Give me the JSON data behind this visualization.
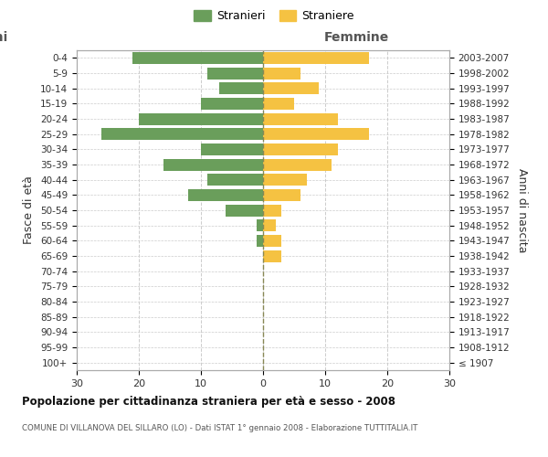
{
  "age_groups": [
    "100+",
    "95-99",
    "90-94",
    "85-89",
    "80-84",
    "75-79",
    "70-74",
    "65-69",
    "60-64",
    "55-59",
    "50-54",
    "45-49",
    "40-44",
    "35-39",
    "30-34",
    "25-29",
    "20-24",
    "15-19",
    "10-14",
    "5-9",
    "0-4"
  ],
  "birth_years": [
    "≤ 1907",
    "1908-1912",
    "1913-1917",
    "1918-1922",
    "1923-1927",
    "1928-1932",
    "1933-1937",
    "1938-1942",
    "1943-1947",
    "1948-1952",
    "1953-1957",
    "1958-1962",
    "1963-1967",
    "1968-1972",
    "1973-1977",
    "1978-1982",
    "1983-1987",
    "1988-1992",
    "1993-1997",
    "1998-2002",
    "2003-2007"
  ],
  "males": [
    0,
    0,
    0,
    0,
    0,
    0,
    0,
    0,
    1,
    1,
    6,
    12,
    9,
    16,
    10,
    26,
    20,
    10,
    7,
    9,
    21
  ],
  "females": [
    0,
    0,
    0,
    0,
    0,
    0,
    0,
    3,
    3,
    2,
    3,
    6,
    7,
    11,
    12,
    17,
    12,
    5,
    9,
    6,
    17
  ],
  "male_color": "#6a9e5b",
  "female_color": "#f5c242",
  "title": "Popolazione per cittadinanza straniera per età e sesso - 2008",
  "subtitle": "COMUNE DI VILLANOVA DEL SILLARO (LO) - Dati ISTAT 1° gennaio 2008 - Elaborazione TUTTITALIA.IT",
  "xlabel_right": "Femmine",
  "ylabel_left": "Fasce di età",
  "ylabel_right": "Anni di nascita",
  "xlim": 30,
  "legend_stranieri": "Stranieri",
  "legend_straniere": "Straniere",
  "background_color": "#ffffff",
  "grid_color": "#cccccc",
  "spine_color": "#aaaaaa"
}
